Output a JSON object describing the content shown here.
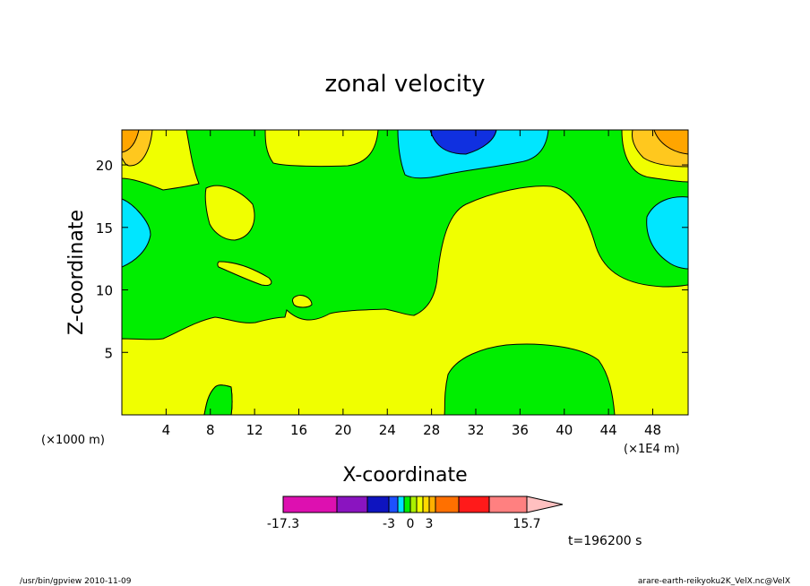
{
  "chart_data": {
    "type": "contour",
    "title": "zonal velocity",
    "xlabel": "X-coordinate",
    "ylabel": "Z-coordinate",
    "x_unit_left": "(×1000 m)",
    "x_unit_right": "(×1E4 m)",
    "xlim": [
      0,
      51.2
    ],
    "ylim": [
      0,
      22.8
    ],
    "xticks": [
      4,
      8,
      12,
      16,
      20,
      24,
      28,
      32,
      36,
      40,
      44,
      48
    ],
    "yticks": [
      5,
      10,
      15,
      20
    ],
    "time_label": "t=196200 s",
    "colorbar": {
      "tick_labels": [
        "-17.3",
        "-3",
        "0",
        "3",
        "15.7"
      ],
      "colors": [
        "#dd10b0",
        "#8a14c0",
        "#0e14c0",
        "#1d50ff",
        "#00e0ff",
        "#00ee00",
        "#aaf000",
        "#f0ff00",
        "#ffd800",
        "#ffb000",
        "#ff7000",
        "#ff1a1a",
        "#ff8080",
        "#ffc0c0"
      ],
      "band_values": [
        -17.3,
        -12.5,
        -7.8,
        -3,
        -2,
        -1,
        0,
        1,
        2,
        3,
        5.2,
        8.4,
        11.5,
        15.7
      ]
    },
    "colors": {
      "yellow": "#f0ff00",
      "green": "#00ee00",
      "cyan": "#00e6ff",
      "blue": "#1030e0",
      "orange": "#ffa500",
      "light_orange": "#ffc81e"
    }
  },
  "footer": {
    "left": "/usr/bin/gpview  2010-11-09",
    "right": "arare-earth-reikyoku2K_VelX.nc@VelX"
  }
}
